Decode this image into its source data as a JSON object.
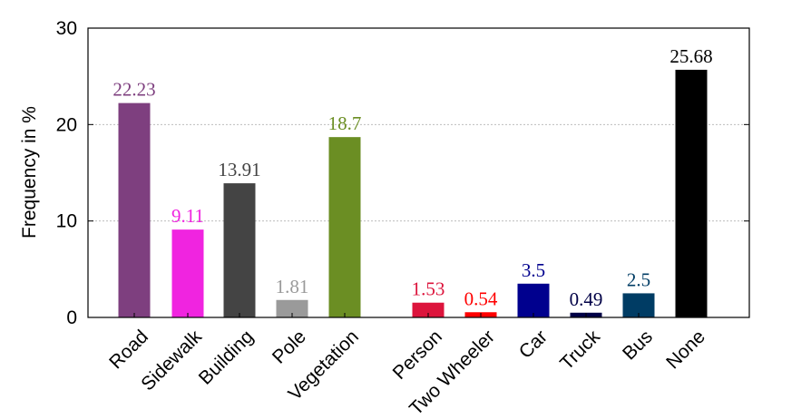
{
  "chart_data": {
    "type": "bar",
    "title": "",
    "xlabel": "",
    "ylabel": "Frequency in %",
    "ylim": [
      0,
      30
    ],
    "yticks": [
      0,
      10,
      20,
      30
    ],
    "grid": "horizontal dashed",
    "categories": [
      "Road",
      "Sidewalk",
      "Building",
      "Pole",
      "Vegetation",
      "Person",
      "Two Wheeler",
      "Car",
      "Truck",
      "Bus",
      "None"
    ],
    "values": [
      22.23,
      9.11,
      13.91,
      1.81,
      18.7,
      1.53,
      0.54,
      3.5,
      0.49,
      2.5,
      25.68
    ],
    "value_labels": [
      "22.23",
      "9.11",
      "13.91",
      "1.81",
      "18.7",
      "1.53",
      "0.54",
      "3.5",
      "0.49",
      "2.5",
      "25.68"
    ],
    "colors": [
      "#7e3f7f",
      "#f024e0",
      "#444444",
      "#9a9a9a",
      "#6b8e23",
      "#dc143c",
      "#ff0000",
      "#00008e",
      "#000046",
      "#003c64",
      "#000000"
    ]
  }
}
